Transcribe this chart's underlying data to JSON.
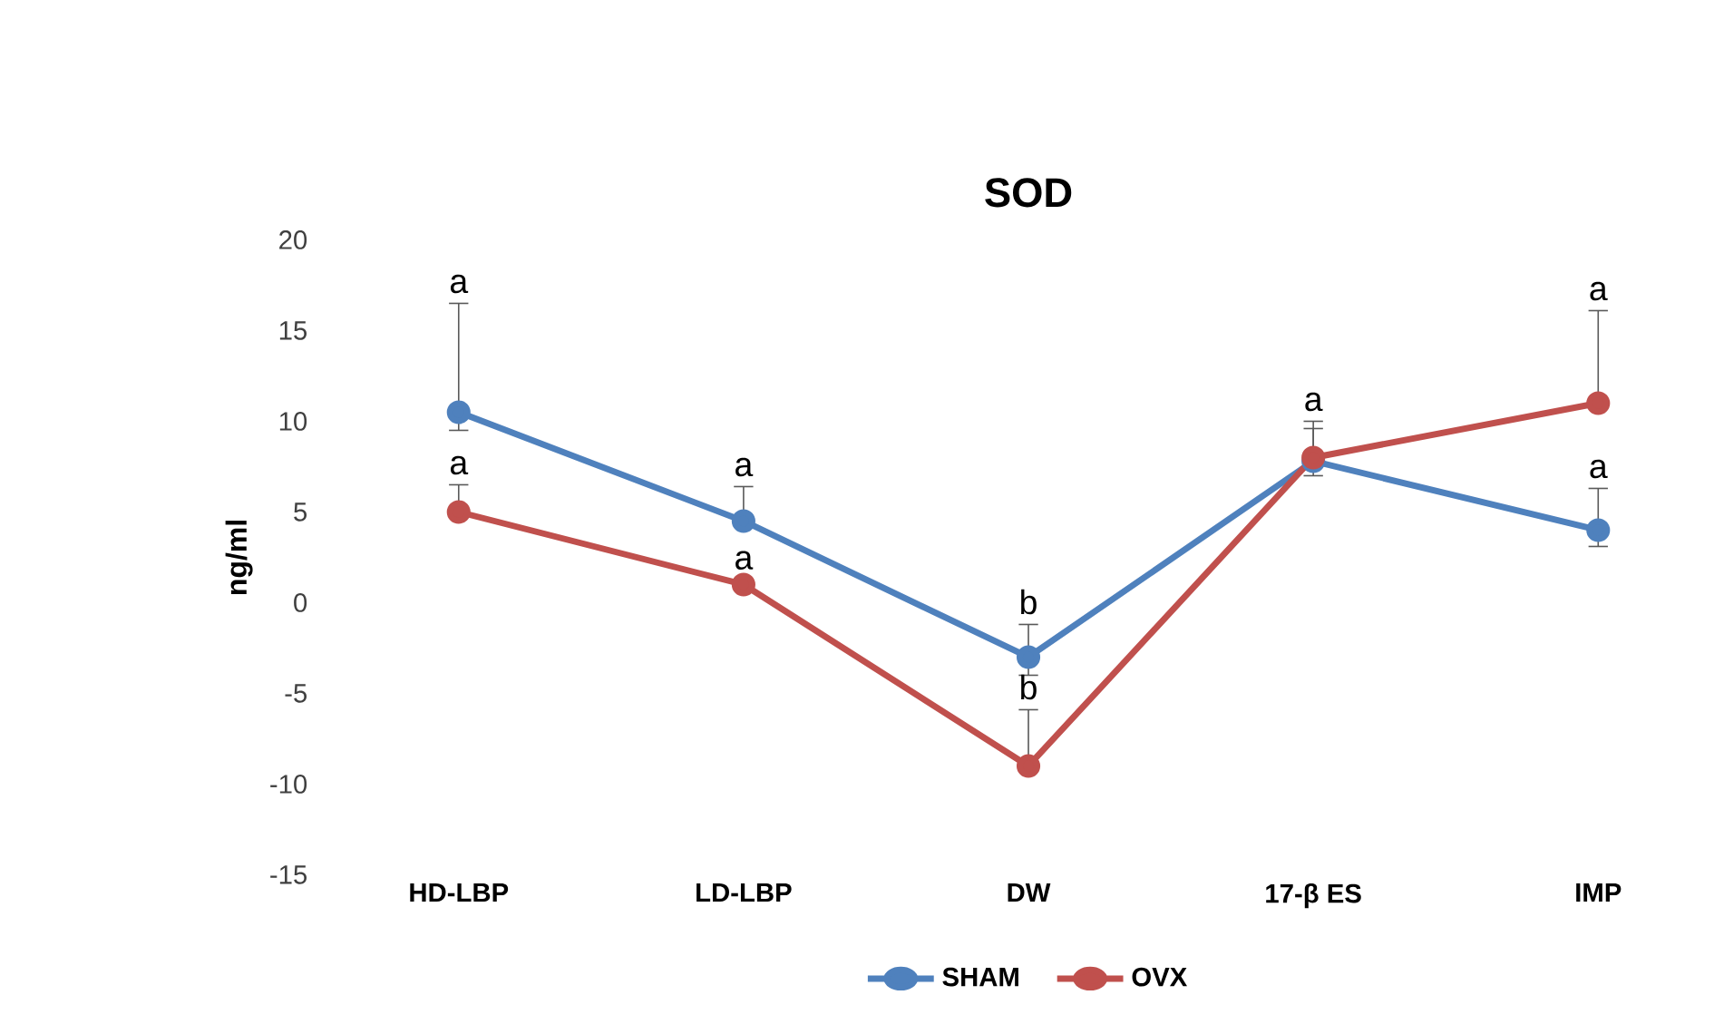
{
  "chart_data": {
    "type": "line",
    "title": "SOD",
    "ylabel": "ng/ml",
    "categories": [
      "HD-LBP",
      "LD-LBP",
      "DW",
      "17-β ES",
      "IMP"
    ],
    "series": [
      {
        "name": "SHAM",
        "color": "#4f81bd",
        "values": [
          10.5,
          4.5,
          -3,
          7.8,
          4
        ],
        "errors": [
          [
            9.5,
            16.5
          ],
          [
            4.5,
            6.4
          ],
          [
            -4,
            -1.2
          ],
          [
            7,
            10
          ],
          [
            3.1,
            6.3
          ]
        ]
      },
      {
        "name": "OVX",
        "color": "#c0504d",
        "values": [
          5,
          1,
          -9,
          8,
          11
        ],
        "errors": [
          [
            5,
            6.5
          ],
          null,
          [
            -9,
            -5.9
          ],
          [
            8,
            9.6
          ],
          [
            11,
            16.1
          ]
        ]
      }
    ],
    "ylim": [
      -15,
      20
    ],
    "yticks": [
      -15,
      -10,
      -5,
      0,
      5,
      10,
      15,
      20
    ],
    "marker": "circle",
    "legend": "bottom",
    "grid": false,
    "annotations": [
      "a",
      "a",
      "a",
      "a",
      "b",
      "b",
      "a",
      "a",
      "a"
    ]
  }
}
